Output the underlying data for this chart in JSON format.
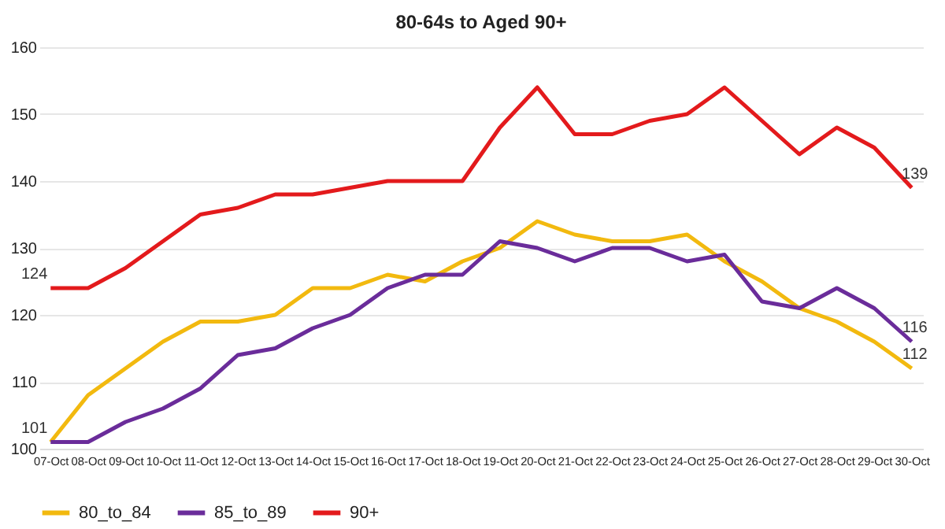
{
  "chart_data": {
    "type": "line",
    "title": "80-64s to Aged 90+",
    "categories": [
      "07-Oct",
      "08-Oct",
      "09-Oct",
      "10-Oct",
      "11-Oct",
      "12-Oct",
      "13-Oct",
      "14-Oct",
      "15-Oct",
      "16-Oct",
      "17-Oct",
      "18-Oct",
      "19-Oct",
      "20-Oct",
      "21-Oct",
      "22-Oct",
      "23-Oct",
      "24-Oct",
      "25-Oct",
      "26-Oct",
      "27-Oct",
      "28-Oct",
      "29-Oct",
      "30-Oct"
    ],
    "series": [
      {
        "name": "80_to_84",
        "color": "#f2b90f",
        "values": [
          101,
          108,
          112,
          116,
          119,
          119,
          120,
          124,
          124,
          126,
          125,
          128,
          130,
          134,
          132,
          131,
          131,
          132,
          128,
          125,
          121,
          119,
          116,
          112
        ],
        "value_labels": [
          "101",
          null,
          null,
          null,
          null,
          null,
          null,
          null,
          null,
          null,
          null,
          null,
          null,
          null,
          null,
          null,
          null,
          null,
          null,
          null,
          null,
          null,
          null,
          "112"
        ]
      },
      {
        "name": "85_to_89",
        "color": "#6a2c9a",
        "values": [
          101,
          101,
          104,
          106,
          109,
          114,
          115,
          118,
          120,
          124,
          126,
          126,
          131,
          130,
          128,
          130,
          130,
          128,
          129,
          122,
          121,
          124,
          121,
          116
        ],
        "value_labels": [
          null,
          null,
          null,
          null,
          null,
          null,
          null,
          null,
          null,
          null,
          null,
          null,
          null,
          null,
          null,
          null,
          null,
          null,
          null,
          null,
          null,
          null,
          null,
          "116"
        ]
      },
      {
        "name": "90+",
        "color": "#e31a1c",
        "values": [
          124,
          124,
          127,
          131,
          135,
          136,
          138,
          138,
          139,
          140,
          140,
          140,
          148,
          154,
          147,
          147,
          149,
          150,
          154,
          149,
          144,
          148,
          145,
          139
        ],
        "value_labels": [
          "124",
          null,
          null,
          null,
          null,
          null,
          null,
          null,
          null,
          null,
          null,
          null,
          null,
          null,
          null,
          null,
          null,
          null,
          null,
          null,
          null,
          null,
          null,
          "139"
        ]
      }
    ],
    "ylim": [
      100,
      160
    ],
    "yticks": [
      100,
      110,
      120,
      130,
      140,
      150,
      160
    ],
    "grid": "y",
    "legend": "bottom",
    "marker": "none",
    "line_style": "solid"
  }
}
